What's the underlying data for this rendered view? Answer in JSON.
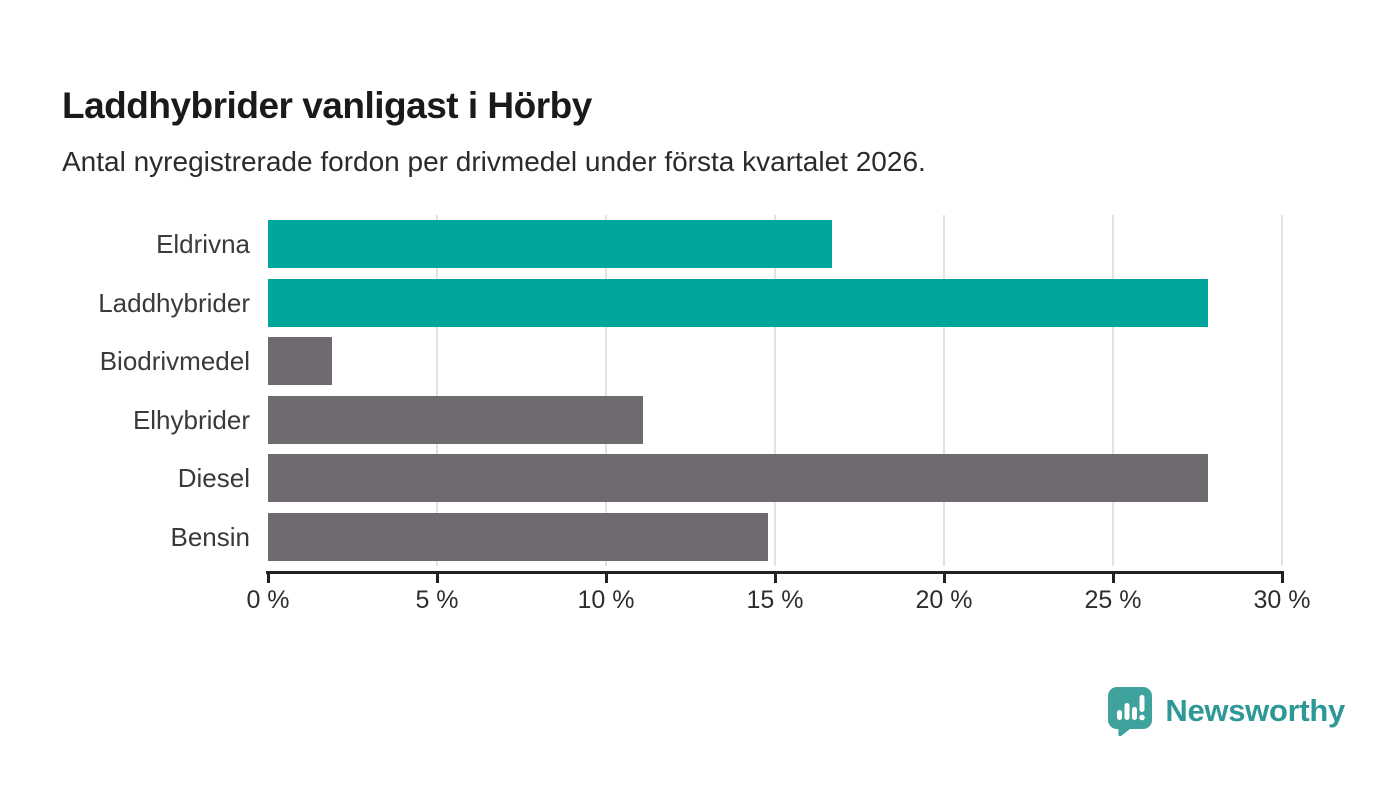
{
  "header": {
    "title": "Laddhybrider vanligast i Hörby",
    "subtitle": "Antal nyregistrerade fordon per drivmedel under första kvartalet 2026."
  },
  "chart_data": {
    "type": "bar",
    "orientation": "horizontal",
    "categories": [
      "Eldrivna",
      "Laddhybrider",
      "Biodrivmedel",
      "Elhybrider",
      "Diesel",
      "Bensin"
    ],
    "values": [
      16.7,
      27.8,
      1.9,
      11.1,
      27.8,
      14.8
    ],
    "unit": "%",
    "bar_colors": [
      "#00A69C",
      "#00A69C",
      "#6E6A70",
      "#6E6A70",
      "#6E6A70",
      "#6E6A70"
    ],
    "title": "Laddhybrider vanligast i Hörby",
    "subtitle": "Antal nyregistrerade fordon per drivmedel under första kvartalet 2026.",
    "xlabel": "",
    "ylabel": "",
    "xlim": [
      0,
      30
    ],
    "x_tick_values": [
      0,
      5,
      10,
      15,
      20,
      25,
      30
    ],
    "x_tick_labels": [
      "0 %",
      "5 %",
      "10 %",
      "15 %",
      "20 %",
      "25 %",
      "30 %"
    ],
    "grid": "vertical-gridlines-on",
    "legend": "none",
    "colors": {
      "highlight_bar": "#00A69C",
      "default_bar": "#6E6A70",
      "gridline": "#e2e2e2",
      "axis": "#222222",
      "text": "#3a3a3a"
    }
  },
  "branding": {
    "logo_text": "Newsworthy",
    "logo_color": "#2E9896",
    "logo_icon": "bar-chart-pin-icon",
    "logo_icon_color": "#3FA29C"
  }
}
